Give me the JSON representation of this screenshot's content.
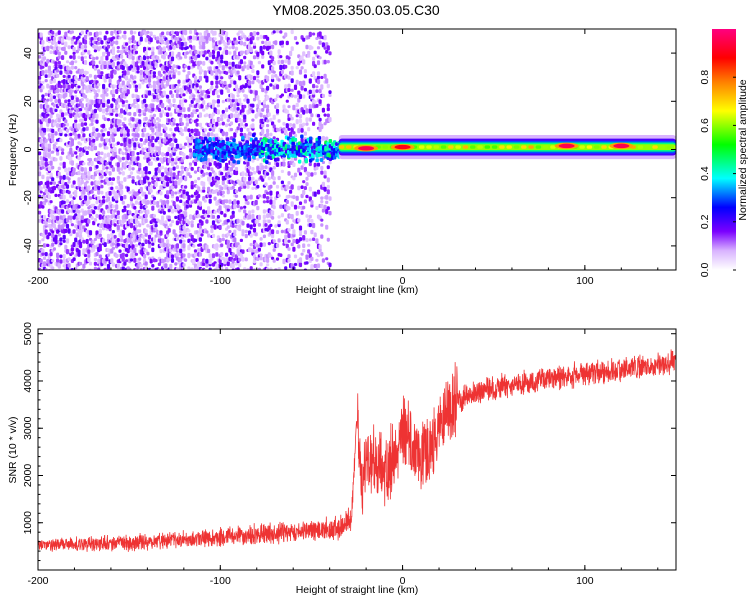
{
  "title": "YM08.2025.350.03.05.C30",
  "chart_data": [
    {
      "type": "heatmap",
      "xlabel": "Height of straight line (km)",
      "ylabel": "Frequency (Hz)",
      "xlim": [
        -200,
        150
      ],
      "ylim": [
        -50,
        50
      ],
      "xticks": [
        -200,
        -100,
        0,
        100
      ],
      "yticks": [
        -40,
        -20,
        0,
        20,
        40
      ],
      "colorbar": {
        "label": "Normalized spectral amplitude",
        "range": [
          0,
          1
        ],
        "ticks": [
          0.0,
          0.2,
          0.4,
          0.6,
          0.8
        ],
        "tick_labels": [
          "0.0",
          "0.2",
          "0.4",
          "0.6",
          "0.8"
        ],
        "colormap": [
          "#ffffff",
          "#d9b3ff",
          "#7b00ff",
          "#0000ff",
          "#00ffff",
          "#00ff00",
          "#ffff00",
          "#ff8000",
          "#ff0000",
          "#ff0080"
        ]
      },
      "regions": [
        {
          "name": "noise",
          "x_range": [
            -200,
            -40
          ],
          "freq_range": [
            -50,
            50
          ],
          "amplitude": 0.1
        },
        {
          "name": "dispersed band",
          "x_range": [
            -115,
            -35
          ],
          "freq_center": 0,
          "freq_halfwidth": 4,
          "amplitude": 0.4
        },
        {
          "name": "narrow line",
          "x_range": [
            -35,
            150
          ],
          "freq_center": 1,
          "freq_halfwidth": 1.5,
          "amplitude": 0.85
        }
      ],
      "peaks": [
        {
          "x": -20,
          "freq": 0.5,
          "amplitude": 0.95
        },
        {
          "x": 0,
          "freq": 1,
          "amplitude": 0.9
        },
        {
          "x": 90,
          "freq": 1.5,
          "amplitude": 0.95
        },
        {
          "x": 120,
          "freq": 1.5,
          "amplitude": 0.95
        }
      ]
    },
    {
      "type": "line",
      "xlabel": "Height of straight line (km)",
      "ylabel": "SNR (10 * v/v)",
      "xlim": [
        -200,
        150
      ],
      "ylim": [
        0,
        5100
      ],
      "xticks": [
        -200,
        -100,
        0,
        100
      ],
      "yticks": [
        1000,
        2000,
        3000,
        4000,
        5000
      ],
      "series": [
        {
          "name": "SNR",
          "color": "#ee3333",
          "x": [
            -200,
            -150,
            -100,
            -60,
            -35,
            -28,
            -25,
            -22,
            -20,
            -15,
            -10,
            -5,
            0,
            5,
            10,
            15,
            20,
            25,
            30,
            40,
            50,
            60,
            80,
            100,
            120,
            150
          ],
          "values": [
            520,
            580,
            690,
            820,
            880,
            1100,
            3200,
            1700,
            2300,
            2200,
            2100,
            2400,
            3000,
            2700,
            2500,
            2400,
            3100,
            3500,
            3600,
            3750,
            3850,
            3900,
            4050,
            4150,
            4250,
            4400
          ]
        }
      ]
    }
  ]
}
